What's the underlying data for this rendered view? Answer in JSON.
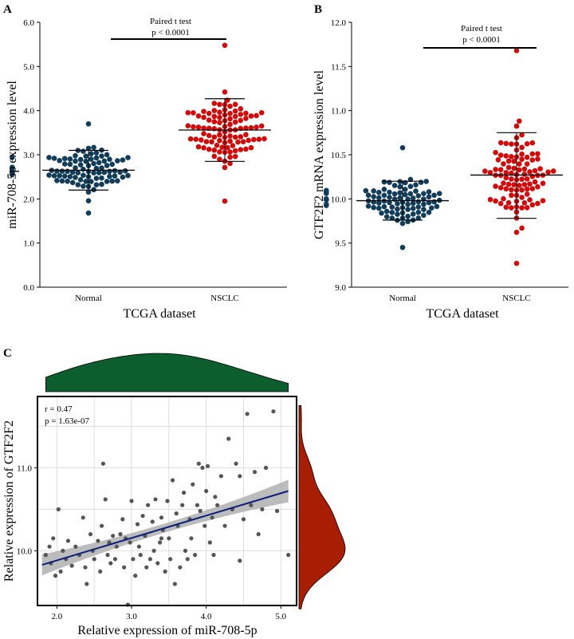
{
  "chart_data": [
    {
      "panel": "A",
      "type": "scatter",
      "title": "",
      "xlabel": "TCGA dataset",
      "ylabel": "miR-708-5p expression level",
      "categories": [
        "Normal",
        "NSCLC"
      ],
      "ylim": [
        0,
        6
      ],
      "yticks": [
        "0.0",
        "1.0",
        "2.0",
        "3.0",
        "4.0",
        "5.0",
        "6.0"
      ],
      "annotation": [
        "Paired t test",
        "p < 0.0001"
      ],
      "colors": [
        "#123d5a",
        "#d10a0a"
      ],
      "series": [
        {
          "name": "Normal",
          "mean": 2.65,
          "sd_low": 2.2,
          "sd_high": 3.1,
          "min": 1.68,
          "max": 3.7,
          "n": 100
        },
        {
          "name": "NSCLC",
          "mean": 3.56,
          "sd_low": 2.85,
          "sd_high": 4.27,
          "min": 1.95,
          "max": 5.48,
          "n": 100
        }
      ]
    },
    {
      "panel": "B",
      "type": "scatter",
      "title": "",
      "xlabel": "TCGA dataset",
      "ylabel": "GTF2F2 mRNA expression level",
      "categories": [
        "Normal",
        "NSCLC"
      ],
      "ylim": [
        9.0,
        12.0
      ],
      "yticks": [
        "9.0",
        "9.5",
        "10.0",
        "10.5",
        "11.0",
        "11.5",
        "12.0"
      ],
      "annotation": [
        "Paired t test",
        "p < 0.0001"
      ],
      "colors": [
        "#123d5a",
        "#d10a0a"
      ],
      "series": [
        {
          "name": "Normal",
          "mean": 9.98,
          "sd_low": 9.76,
          "sd_high": 10.2,
          "min": 9.45,
          "max": 10.58,
          "n": 100
        },
        {
          "name": "NSCLC",
          "mean": 10.27,
          "sd_low": 9.78,
          "sd_high": 10.75,
          "min": 9.27,
          "max": 11.68,
          "n": 100
        }
      ]
    },
    {
      "panel": "C",
      "type": "scatter",
      "title": "",
      "xlabel": "Relative expression of miR-708-5p",
      "ylabel": "Relative expression of GTF2F2",
      "xlim": [
        1.75,
        5.2
      ],
      "ylim": [
        9.35,
        11.85
      ],
      "xticks": [
        "2.0",
        "3.0",
        "4.0",
        "5.0"
      ],
      "yticks": [
        "10.0",
        "11.0"
      ],
      "annotation": [
        "r = 0.47",
        "p = 1.63e-07"
      ],
      "regression": {
        "x0": 1.8,
        "y0": 9.83,
        "x1": 5.1,
        "y1": 10.72
      },
      "colors": {
        "points": "#555555",
        "line": "#0a1f7a",
        "band": "#b0b0b0",
        "top_density": "#0d5e2e",
        "right_density": "#a81e05"
      },
      "points": [
        [
          1.85,
          9.95
        ],
        [
          1.9,
          10.05
        ],
        [
          1.92,
          9.85
        ],
        [
          1.95,
          10.15
        ],
        [
          1.98,
          9.7
        ],
        [
          2.02,
          10.5
        ],
        [
          2.05,
          9.75
        ],
        [
          2.08,
          10.0
        ],
        [
          2.12,
          9.9
        ],
        [
          2.15,
          10.12
        ],
        [
          2.2,
          9.82
        ],
        [
          2.25,
          10.05
        ],
        [
          2.3,
          9.95
        ],
        [
          2.35,
          10.4
        ],
        [
          2.38,
          9.8
        ],
        [
          2.4,
          9.6
        ],
        [
          2.45,
          10.2
        ],
        [
          2.48,
          10.0
        ],
        [
          2.5,
          9.9
        ],
        [
          2.55,
          10.12
        ],
        [
          2.58,
          9.75
        ],
        [
          2.6,
          10.3
        ],
        [
          2.62,
          11.05
        ],
        [
          2.65,
          10.62
        ],
        [
          2.68,
          9.95
        ],
        [
          2.7,
          10.1
        ],
        [
          2.72,
          9.85
        ],
        [
          2.75,
          10.18
        ],
        [
          2.78,
          9.9
        ],
        [
          2.8,
          10.05
        ],
        [
          2.85,
          10.2
        ],
        [
          2.88,
          10.38
        ],
        [
          2.9,
          9.8
        ],
        [
          2.92,
          10.15
        ],
        [
          2.95,
          9.35
        ],
        [
          2.98,
          10.1
        ],
        [
          3.0,
          10.6
        ],
        [
          3.02,
          9.9
        ],
        [
          3.05,
          9.7
        ],
        [
          3.08,
          10.32
        ],
        [
          3.1,
          10.05
        ],
        [
          3.12,
          9.95
        ],
        [
          3.15,
          10.42
        ],
        [
          3.18,
          10.18
        ],
        [
          3.2,
          9.8
        ],
        [
          3.22,
          10.55
        ],
        [
          3.25,
          9.9
        ],
        [
          3.28,
          10.35
        ],
        [
          3.3,
          10.0
        ],
        [
          3.32,
          10.62
        ],
        [
          3.35,
          9.85
        ],
        [
          3.38,
          10.1
        ],
        [
          3.4,
          10.4
        ],
        [
          3.42,
          10.25
        ],
        [
          3.45,
          9.75
        ],
        [
          3.48,
          10.6
        ],
        [
          3.5,
          10.15
        ],
        [
          3.52,
          9.9
        ],
        [
          3.55,
          10.85
        ],
        [
          3.58,
          9.6
        ],
        [
          3.6,
          10.45
        ],
        [
          3.62,
          10.3
        ],
        [
          3.65,
          9.8
        ],
        [
          3.68,
          10.55
        ],
        [
          3.7,
          10.7
        ],
        [
          3.72,
          10.0
        ],
        [
          3.75,
          9.9
        ],
        [
          3.78,
          10.38
        ],
        [
          3.8,
          10.15
        ],
        [
          3.82,
          10.8
        ],
        [
          3.85,
          9.95
        ],
        [
          3.88,
          10.55
        ],
        [
          3.9,
          11.05
        ],
        [
          3.92,
          10.48
        ],
        [
          3.95,
          11.0
        ],
        [
          3.98,
          10.3
        ],
        [
          4.0,
          10.72
        ],
        [
          4.02,
          11.02
        ],
        [
          4.05,
          10.1
        ],
        [
          4.08,
          10.4
        ],
        [
          4.1,
          9.95
        ],
        [
          4.12,
          10.65
        ],
        [
          4.15,
          10.55
        ],
        [
          4.2,
          10.9
        ],
        [
          4.25,
          10.3
        ],
        [
          4.3,
          11.35
        ],
        [
          4.35,
          10.5
        ],
        [
          4.4,
          11.05
        ],
        [
          4.45,
          10.9
        ],
        [
          4.5,
          10.38
        ],
        [
          4.55,
          11.65
        ],
        [
          4.6,
          10.55
        ],
        [
          4.65,
          10.95
        ],
        [
          4.7,
          10.2
        ],
        [
          4.75,
          10.5
        ],
        [
          4.8,
          11.0
        ],
        [
          4.9,
          11.68
        ],
        [
          4.95,
          10.48
        ],
        [
          5.1,
          9.95
        ],
        [
          4.45,
          9.88
        ],
        [
          3.4,
          10.15
        ]
      ]
    }
  ],
  "panels": {
    "a": "A",
    "b": "B",
    "c": "C"
  }
}
